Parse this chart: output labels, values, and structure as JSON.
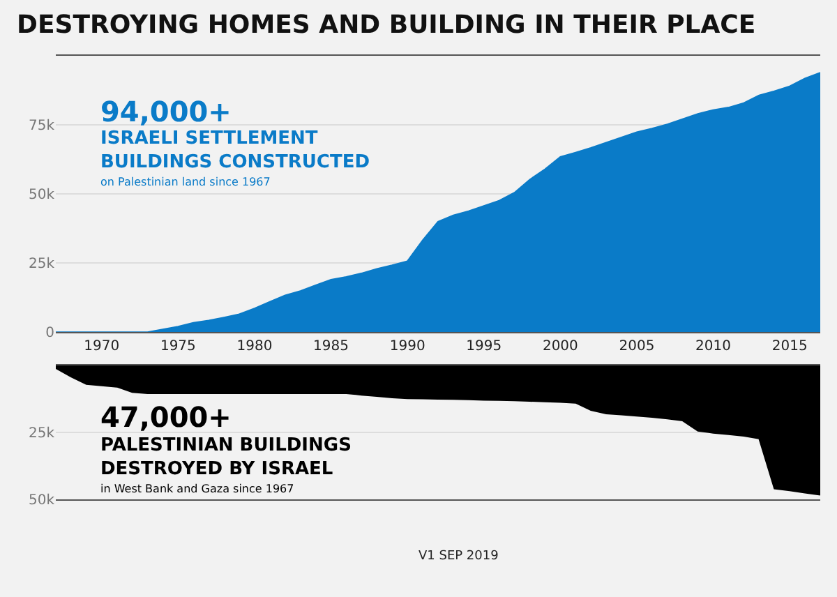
{
  "chart_data": [
    {
      "type": "area",
      "title": "DESTROYING HOMES AND BUILDING IN THEIR PLACE",
      "annotations": [
        "94,000+",
        "ISRAELI SETTLEMENT\nBUILDINGS CONSTRUCTED",
        "on Palestinian land since 1967"
      ],
      "x": [
        1967,
        1968,
        1969,
        1970,
        1971,
        1972,
        1973,
        1974,
        1975,
        1976,
        1977,
        1978,
        1979,
        1980,
        1981,
        1982,
        1983,
        1984,
        1985,
        1986,
        1987,
        1988,
        1989,
        1990,
        1991,
        1992,
        1993,
        1994,
        1995,
        1996,
        1997,
        1998,
        1999,
        2000,
        2001,
        2002,
        2003,
        2004,
        2005,
        2006,
        2007,
        2008,
        2009,
        2010,
        2011,
        2012,
        2013,
        2014,
        2015,
        2016,
        2017
      ],
      "series": [
        {
          "color": "#0a7bc8",
          "values": [
            0,
            0,
            0,
            0,
            0,
            0,
            0,
            1000,
            2000,
            3400,
            4200,
            5300,
            6500,
            8600,
            11000,
            13300,
            14900,
            17000,
            19000,
            20000,
            21300,
            22900,
            24200,
            25700,
            33300,
            40000,
            42300,
            43800,
            45700,
            47600,
            50500,
            55200,
            59000,
            63400,
            65000,
            66700,
            68600,
            70500,
            72400,
            73700,
            75200,
            77100,
            79000,
            80400,
            81300,
            82900,
            85700,
            87200,
            89000,
            91800,
            93900
          ]
        }
      ],
      "xlim": [
        1967,
        2017
      ],
      "xticks": [
        1970,
        1975,
        1980,
        1985,
        1990,
        1995,
        2000,
        2005,
        2010,
        2015
      ],
      "ylim": [
        0,
        100000
      ],
      "yticks": [
        0,
        {
          "value": 25000,
          "label": "25k"
        },
        {
          "value": 50000,
          "label": "50k"
        },
        {
          "value": 75000,
          "label": "75k"
        }
      ],
      "grid": "y"
    },
    {
      "type": "area",
      "annotations": [
        "47,000+",
        "PALESTINIAN BUILDINGS\nDESTROYED BY ISRAEL",
        "in West Bank and Gaza since 1967",
        "V1 SEP 2019"
      ],
      "x": [
        1967,
        1968,
        1969,
        1970,
        1971,
        1972,
        1973,
        1974,
        1975,
        1976,
        1977,
        1978,
        1979,
        1980,
        1981,
        1982,
        1983,
        1984,
        1985,
        1986,
        1987,
        1988,
        1989,
        1990,
        1991,
        1992,
        1993,
        1994,
        1995,
        1996,
        1997,
        1998,
        1999,
        2000,
        2001,
        2002,
        2003,
        2004,
        2005,
        2006,
        2007,
        2008,
        2009,
        2010,
        2011,
        2012,
        2013,
        2014,
        2015,
        2016,
        2017
      ],
      "series": [
        {
          "color": "#000000",
          "values": [
            1000,
            4200,
            7000,
            7500,
            8000,
            10000,
            10400,
            10400,
            10400,
            10400,
            10400,
            10400,
            10400,
            10400,
            10400,
            10400,
            10400,
            10400,
            10400,
            10400,
            11000,
            11500,
            12000,
            12300,
            12400,
            12500,
            12600,
            12700,
            12900,
            13000,
            13100,
            13300,
            13500,
            13700,
            14000,
            16700,
            18000,
            18400,
            18800,
            19300,
            19900,
            20600,
            24400,
            25200,
            25700,
            26300,
            27300,
            46000,
            46700,
            47500,
            48300
          ]
        }
      ],
      "xlim": [
        1967,
        2017
      ],
      "xticks": [
        1970,
        1975,
        1980,
        1985,
        1990,
        1995,
        2000,
        2005,
        2010,
        2015
      ],
      "ylim": [
        50000,
        0
      ],
      "yticks": [
        {
          "value": 25000,
          "label": "25k"
        },
        {
          "value": 50000,
          "label": "50k"
        }
      ],
      "grid": "y",
      "tick_labels": "y"
    }
  ]
}
